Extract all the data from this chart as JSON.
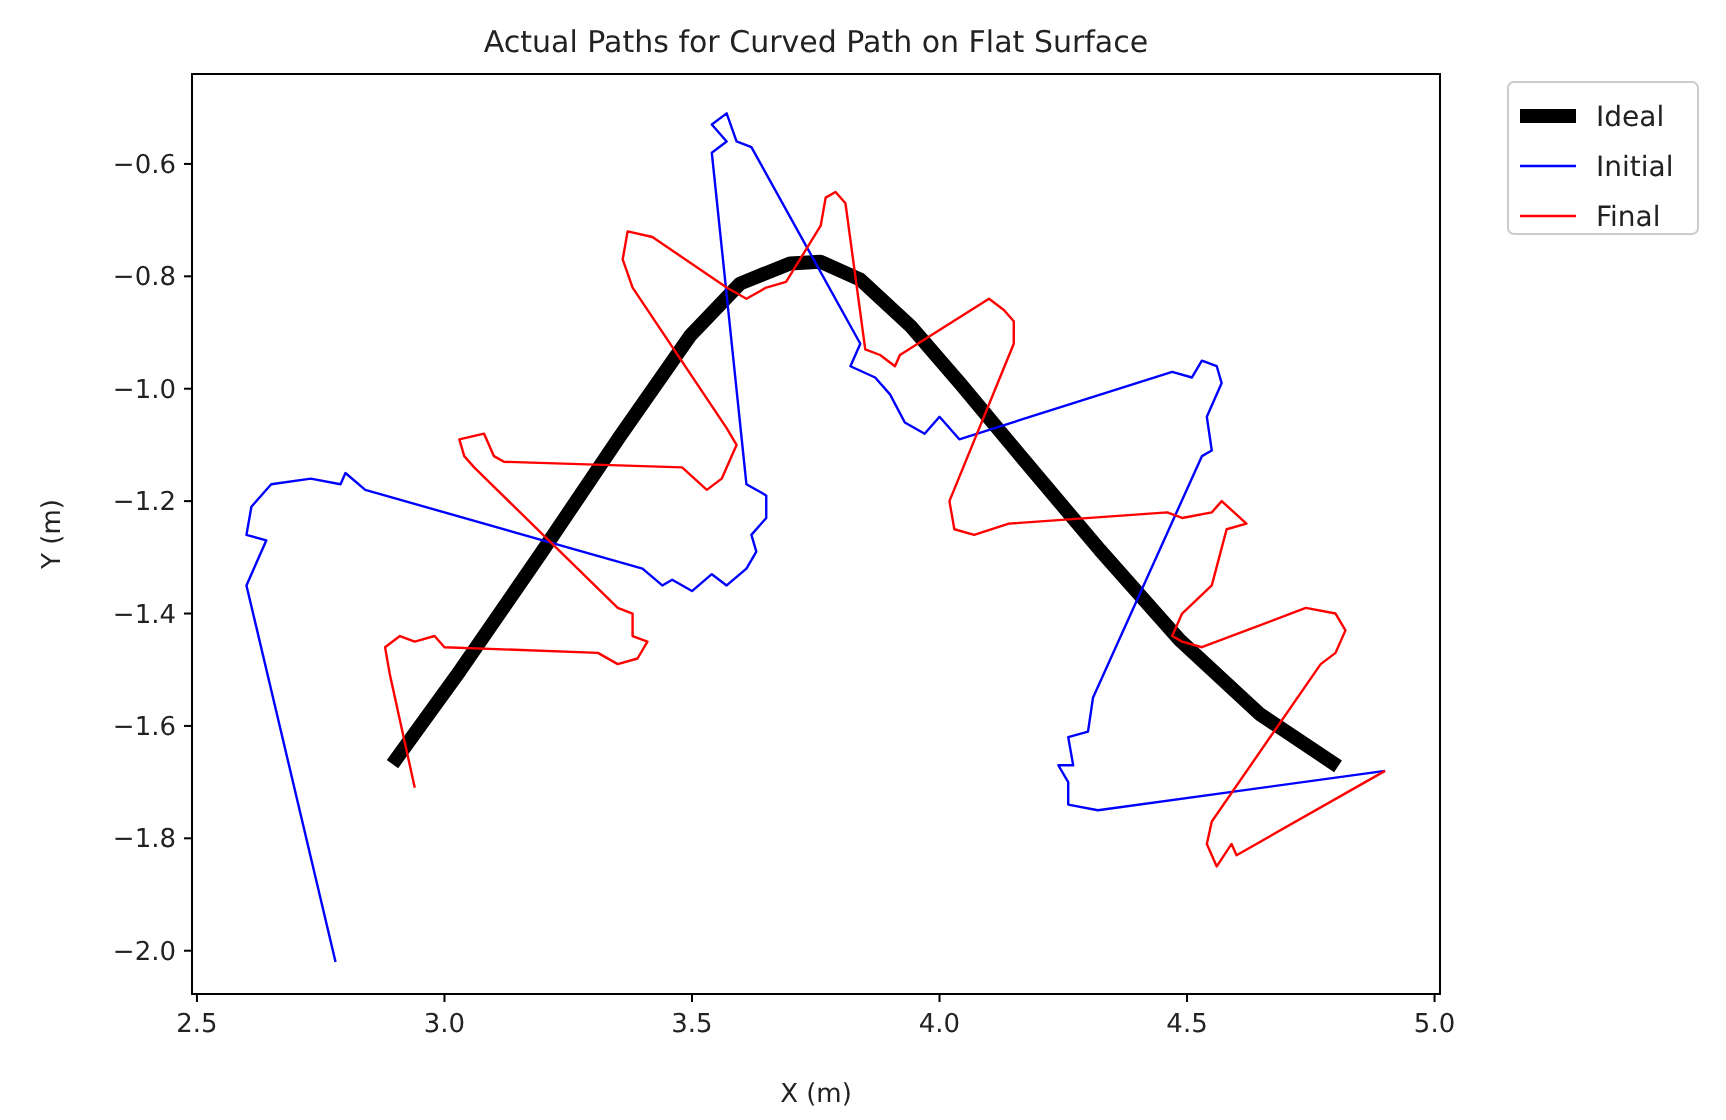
{
  "chart_data": {
    "type": "line",
    "title": "Actual Paths for Curved Path on Flat Surface",
    "xlabel": "X (m)",
    "ylabel": "Y (m)",
    "xlim": [
      2.49,
      5.011
    ],
    "ylim": [
      -2.077,
      -0.44
    ],
    "xticks": [
      {
        "value": 2.5,
        "label": "2.5"
      },
      {
        "value": 3,
        "label": "3.0"
      },
      {
        "value": 3.5,
        "label": "3.5"
      },
      {
        "value": 4,
        "label": "4.0"
      },
      {
        "value": 4.5,
        "label": "4.5"
      },
      {
        "value": 5,
        "label": "5.0"
      }
    ],
    "yticks": [
      {
        "value": -2,
        "label": "−2.0"
      },
      {
        "value": -1.8,
        "label": "−1.8"
      },
      {
        "value": -1.6,
        "label": "−1.6"
      },
      {
        "value": -1.4,
        "label": "−1.4"
      },
      {
        "value": -1.2,
        "label": "−1.2"
      },
      {
        "value": -1,
        "label": "−1.0"
      },
      {
        "value": -0.8,
        "label": "−0.8"
      },
      {
        "value": -0.6,
        "label": "−0.6"
      }
    ],
    "grid": false,
    "legend": "top right",
    "marker": "none",
    "line_style": "solid",
    "series": [
      {
        "name": "Ideal",
        "color": "#000000",
        "x": [
          2.895,
          3.032,
          3.194,
          3.355,
          3.496,
          3.597,
          3.698,
          3.759,
          3.84,
          3.941,
          4.042,
          4.163,
          4.324,
          4.485,
          4.647,
          4.805
        ],
        "values": [
          -1.668,
          -1.501,
          -1.294,
          -1.084,
          -0.906,
          -0.813,
          -0.777,
          -0.774,
          -0.806,
          -0.888,
          -0.991,
          -1.119,
          -1.287,
          -1.447,
          -1.579,
          -1.672
        ]
      },
      {
        "name": "Initial",
        "color": "#0000ff",
        "x": [
          2.78,
          2.6,
          2.64,
          2.6,
          2.61,
          2.65,
          2.73,
          2.79,
          2.8,
          2.84,
          3.4,
          3.44,
          3.46,
          3.5,
          3.54,
          3.57,
          3.61,
          3.63,
          3.62,
          3.65,
          3.65,
          3.61,
          3.54,
          3.57,
          3.54,
          3.57,
          3.59,
          3.62,
          3.84,
          3.82,
          3.87,
          3.9,
          3.93,
          3.97,
          4.0,
          4.04,
          4.47,
          4.51,
          4.53,
          4.56,
          4.57,
          4.54,
          4.55,
          4.53,
          4.31,
          4.3,
          4.26,
          4.27,
          4.24,
          4.26,
          4.26,
          4.32,
          4.9
        ],
        "values": [
          -2.02,
          -1.35,
          -1.27,
          -1.26,
          -1.21,
          -1.17,
          -1.16,
          -1.17,
          -1.15,
          -1.18,
          -1.32,
          -1.35,
          -1.34,
          -1.36,
          -1.33,
          -1.35,
          -1.32,
          -1.29,
          -1.26,
          -1.23,
          -1.19,
          -1.17,
          -0.58,
          -0.56,
          -0.53,
          -0.51,
          -0.56,
          -0.57,
          -0.92,
          -0.96,
          -0.98,
          -1.01,
          -1.06,
          -1.08,
          -1.05,
          -1.09,
          -0.97,
          -0.98,
          -0.95,
          -0.96,
          -0.99,
          -1.05,
          -1.11,
          -1.12,
          -1.55,
          -1.61,
          -1.62,
          -1.67,
          -1.67,
          -1.7,
          -1.74,
          -1.75,
          -1.68
        ]
      },
      {
        "name": "Final",
        "color": "#ff0000",
        "x": [
          2.94,
          2.89,
          2.88,
          2.91,
          2.94,
          2.98,
          3.0,
          3.31,
          3.35,
          3.39,
          3.41,
          3.38,
          3.38,
          3.35,
          3.06,
          3.04,
          3.03,
          3.08,
          3.1,
          3.12,
          3.48,
          3.53,
          3.56,
          3.59,
          3.57,
          3.38,
          3.36,
          3.37,
          3.42,
          3.57,
          3.61,
          3.65,
          3.69,
          3.76,
          3.77,
          3.79,
          3.81,
          3.85,
          3.88,
          3.91,
          3.92,
          4.1,
          4.13,
          4.15,
          4.15,
          4.02,
          4.03,
          4.07,
          4.14,
          4.46,
          4.49,
          4.55,
          4.57,
          4.62,
          4.58,
          4.55,
          4.49,
          4.47,
          4.49,
          4.53,
          4.74,
          4.8,
          4.82,
          4.8,
          4.77,
          4.55,
          4.54,
          4.56,
          4.59,
          4.6,
          4.9
        ],
        "values": [
          -1.71,
          -1.51,
          -1.46,
          -1.44,
          -1.45,
          -1.44,
          -1.46,
          -1.47,
          -1.49,
          -1.48,
          -1.45,
          -1.44,
          -1.4,
          -1.39,
          -1.14,
          -1.12,
          -1.09,
          -1.08,
          -1.12,
          -1.13,
          -1.14,
          -1.18,
          -1.16,
          -1.1,
          -1.07,
          -0.82,
          -0.77,
          -0.72,
          -0.73,
          -0.82,
          -0.84,
          -0.82,
          -0.81,
          -0.71,
          -0.66,
          -0.65,
          -0.67,
          -0.93,
          -0.94,
          -0.96,
          -0.94,
          -0.84,
          -0.86,
          -0.88,
          -0.92,
          -1.2,
          -1.25,
          -1.26,
          -1.24,
          -1.22,
          -1.23,
          -1.22,
          -1.2,
          -1.24,
          -1.25,
          -1.35,
          -1.4,
          -1.44,
          -1.45,
          -1.46,
          -1.39,
          -1.4,
          -1.43,
          -1.47,
          -1.49,
          -1.77,
          -1.81,
          -1.85,
          -1.81,
          -1.83,
          -1.68
        ]
      }
    ]
  }
}
